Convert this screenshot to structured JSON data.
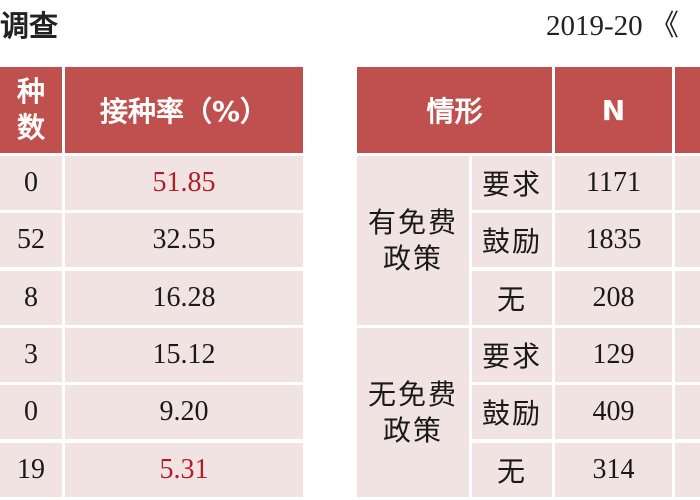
{
  "title_left": "调查",
  "title_right": "2019-20 《",
  "left_table": {
    "headers": [
      "种\n数",
      "接种率（%）"
    ],
    "header_col1_line1": "种",
    "header_col1_line2": "数",
    "rows": [
      {
        "count": "0",
        "rate": "51.85",
        "highlight": true
      },
      {
        "count": "52",
        "rate": "32.55",
        "highlight": false
      },
      {
        "count": "8",
        "rate": "16.28",
        "highlight": false
      },
      {
        "count": "3",
        "rate": "15.12",
        "highlight": false
      },
      {
        "count": "0",
        "rate": "9.20",
        "highlight": false
      },
      {
        "count": "19",
        "rate": "5.31",
        "highlight": true
      }
    ]
  },
  "right_table": {
    "header_situation": "情形",
    "header_n": "N",
    "groups": [
      {
        "label_line1": "有免费",
        "label_line2": "政策",
        "rows": [
          {
            "type": "要求",
            "n": "1171"
          },
          {
            "type": "鼓励",
            "n": "1835"
          },
          {
            "type": "无",
            "n": "208"
          }
        ]
      },
      {
        "label_line1": "无免费",
        "label_line2": "政策",
        "rows": [
          {
            "type": "要求",
            "n": "129"
          },
          {
            "type": "鼓励",
            "n": "409"
          },
          {
            "type": "无",
            "n": "314"
          }
        ]
      }
    ]
  },
  "colors": {
    "header_bg": "#c0504d",
    "body_bg": "#f2e3e3",
    "highlight_text": "#b01e28"
  }
}
